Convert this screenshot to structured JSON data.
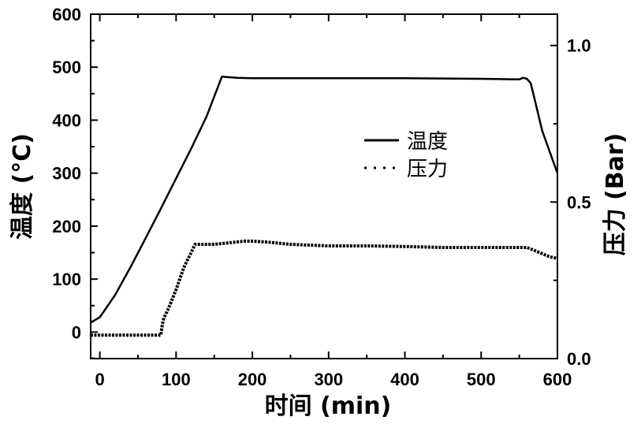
{
  "chart_data": {
    "type": "line",
    "xlabel": "时间 (min)",
    "ylabel_left": "温度 (°C)",
    "ylabel_right": "压力 (Bar)",
    "xlim": [
      -12,
      600
    ],
    "ylim_left": [
      -50,
      600
    ],
    "ylim_right": [
      0.0,
      1.1
    ],
    "x_ticks": [
      0,
      100,
      200,
      300,
      400,
      500,
      600
    ],
    "y_left_ticks": [
      0,
      100,
      200,
      300,
      400,
      500,
      600
    ],
    "y_right_ticks": [
      0.0,
      0.5,
      1.0
    ],
    "y_right_tick_labels": [
      "0.0",
      "0.5",
      "1.0"
    ],
    "grid": false,
    "legend_position": "center-right",
    "series": [
      {
        "name": "温度",
        "axis": "left",
        "style": "solid",
        "x": [
          -12,
          0,
          20,
          40,
          60,
          80,
          100,
          120,
          140,
          160,
          180,
          200,
          300,
          400,
          500,
          550,
          555,
          560,
          565,
          570,
          580,
          590,
          600
        ],
        "y": [
          18,
          28,
          70,
          122,
          177,
          233,
          290,
          347,
          407,
          482,
          480,
          479,
          479,
          479,
          478,
          477,
          480,
          478,
          470,
          440,
          380,
          340,
          300
        ]
      },
      {
        "name": "压力",
        "axis": "right",
        "style": "dotted",
        "x": [
          -12,
          0,
          20,
          40,
          60,
          80,
          82,
          84,
          90,
          100,
          110,
          120,
          125,
          130,
          150,
          170,
          190,
          200,
          220,
          250,
          300,
          350,
          400,
          450,
          500,
          550,
          560,
          570,
          580,
          590,
          600
        ],
        "y": [
          0.075,
          0.075,
          0.075,
          0.075,
          0.075,
          0.075,
          0.11,
          0.13,
          0.16,
          0.22,
          0.29,
          0.34,
          0.365,
          0.365,
          0.365,
          0.37,
          0.375,
          0.375,
          0.372,
          0.365,
          0.36,
          0.36,
          0.358,
          0.355,
          0.355,
          0.355,
          0.355,
          0.345,
          0.335,
          0.325,
          0.32
        ]
      }
    ]
  }
}
